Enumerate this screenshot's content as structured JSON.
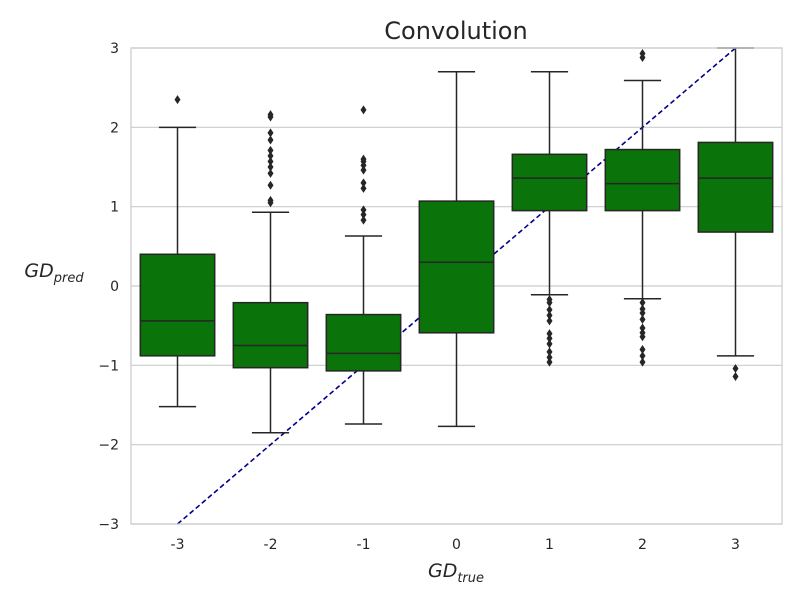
{
  "chart_data": {
    "type": "boxplot",
    "title": "Convolution",
    "xlabel": {
      "main": "GD",
      "sub": "true"
    },
    "ylabel": {
      "main": "GD",
      "sub": "pred"
    },
    "ylim": [
      -3,
      3
    ],
    "yticks": [
      -3,
      -2,
      -1,
      0,
      1,
      2,
      3
    ],
    "ytick_labels": [
      "−3",
      "−2",
      "−1",
      "0",
      "1",
      "2",
      "3"
    ],
    "categories": [
      "-3",
      "-2",
      "-1",
      "0",
      "1",
      "2",
      "3"
    ],
    "grid": "horizontal",
    "box_color": "#0a730a",
    "reference_line": {
      "style": "dashed",
      "color": "#00008b",
      "from": [
        -3,
        -3
      ],
      "to": [
        3,
        3
      ]
    },
    "boxes": [
      {
        "category": "-3",
        "whisker_low": -1.52,
        "q1": -0.88,
        "median": -0.44,
        "q3": 0.4,
        "whisker_high": 2.0,
        "outliers": [
          2.35
        ]
      },
      {
        "category": "-2",
        "whisker_low": -1.85,
        "q1": -1.03,
        "median": -0.75,
        "q3": -0.21,
        "whisker_high": 0.93,
        "outliers": [
          1.05,
          1.08,
          1.27,
          1.42,
          1.5,
          1.57,
          1.64,
          1.71,
          1.84,
          1.93,
          2.13,
          2.16
        ]
      },
      {
        "category": "-1",
        "whisker_low": -1.74,
        "q1": -1.07,
        "median": -0.85,
        "q3": -0.36,
        "whisker_high": 0.63,
        "outliers": [
          0.83,
          0.9,
          0.96,
          1.23,
          1.3,
          1.46,
          1.52,
          1.57,
          1.6,
          2.22
        ]
      },
      {
        "category": "0",
        "whisker_low": -1.77,
        "q1": -0.59,
        "median": 0.3,
        "q3": 1.07,
        "whisker_high": 2.7,
        "outliers": []
      },
      {
        "category": "1",
        "whisker_low": -0.11,
        "q1": 0.95,
        "median": 1.36,
        "q3": 1.66,
        "whisker_high": 2.7,
        "outliers": [
          -0.17,
          -0.21,
          -0.3,
          -0.37,
          -0.44,
          -0.6,
          -0.66,
          -0.73,
          -0.83,
          -0.9,
          -0.96
        ]
      },
      {
        "category": "2",
        "whisker_low": -0.16,
        "q1": 0.95,
        "median": 1.29,
        "q3": 1.72,
        "whisker_high": 2.59,
        "outliers": [
          -0.21,
          -0.29,
          -0.34,
          -0.42,
          -0.53,
          -0.59,
          -0.64,
          -0.8,
          -0.88,
          -0.96,
          2.88,
          2.93
        ]
      },
      {
        "category": "3",
        "whisker_low": -0.88,
        "q1": 0.68,
        "median": 1.36,
        "q3": 1.81,
        "whisker_high": 3.0,
        "outliers": [
          -1.04,
          -1.14
        ]
      }
    ]
  }
}
